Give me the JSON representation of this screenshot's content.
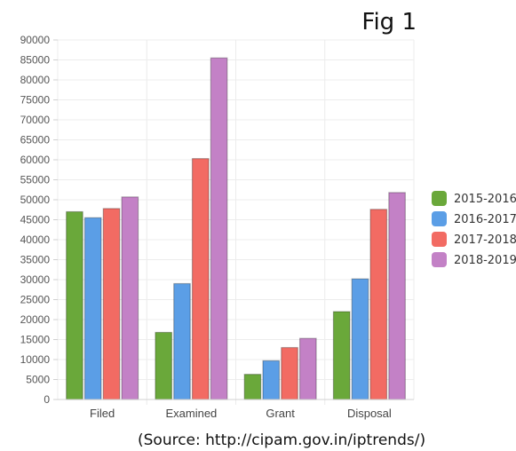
{
  "figure_label": "Fig 1",
  "source_note": "(Source: http://cipam.gov.in/iptrends/)",
  "chart_data": {
    "type": "bar",
    "title": "",
    "xlabel": "",
    "ylabel": "",
    "categories": [
      "Filed",
      "Examined",
      "Grant",
      "Disposal"
    ],
    "ylim": [
      0,
      90000
    ],
    "y_tick_step": 5000,
    "grid": true,
    "legend_position": "right",
    "series": [
      {
        "name": "2015-2016",
        "color": "#6aa83a",
        "values": [
          47000,
          16800,
          6300,
          22000
        ]
      },
      {
        "name": "2016-2017",
        "color": "#5b9ee6",
        "values": [
          45500,
          29000,
          9700,
          30200
        ]
      },
      {
        "name": "2017-2018",
        "color": "#f26b63",
        "values": [
          47800,
          60300,
          13000,
          47600
        ]
      },
      {
        "name": "2018-2019",
        "color": "#c381c6",
        "values": [
          50700,
          85500,
          15300,
          51800
        ]
      }
    ]
  }
}
